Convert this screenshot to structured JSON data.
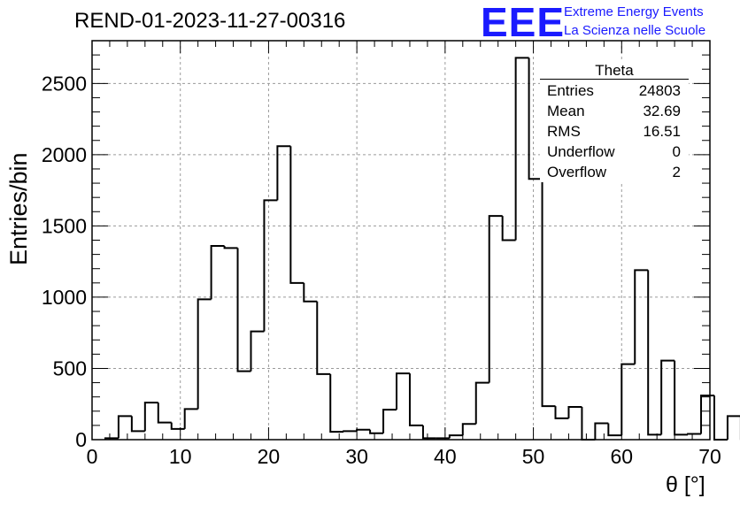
{
  "title": "REND-01-2023-11-27-00316",
  "logo": {
    "mark": "EEE",
    "line1": "Extreme Energy Events",
    "line2": "La Scienza nelle Scuole"
  },
  "stats": {
    "name": "Theta",
    "rows": [
      {
        "label": "Entries",
        "value": "24803"
      },
      {
        "label": "Mean",
        "value": "32.69"
      },
      {
        "label": "RMS",
        "value": "16.51"
      },
      {
        "label": "Underflow",
        "value": "0"
      },
      {
        "label": "Overflow",
        "value": "2"
      }
    ]
  },
  "chart_data": {
    "type": "histogram",
    "xlabel": "θ [°]",
    "ylabel": "Entries/bin",
    "xlim": [
      0,
      70
    ],
    "ylim": [
      0,
      2800
    ],
    "xticks": [
      0,
      10,
      20,
      30,
      40,
      50,
      60,
      70
    ],
    "yticks": [
      0,
      500,
      1000,
      1500,
      2000,
      2500
    ],
    "grid": true,
    "legend": "top-right",
    "bin_width": 1.5,
    "bin_start": 1.5,
    "values": [
      10,
      165,
      60,
      260,
      120,
      75,
      215,
      985,
      1360,
      1345,
      480,
      760,
      1680,
      2060,
      1100,
      970,
      460,
      55,
      60,
      70,
      45,
      210,
      465,
      100,
      10,
      10,
      30,
      110,
      400,
      1570,
      1400,
      2680,
      1830,
      235,
      150,
      230,
      0,
      115,
      30,
      530,
      1190,
      35,
      555,
      35,
      40,
      310,
      0,
      165,
      5
    ],
    "line_color": "#000000",
    "logo_color": "#1a1aff"
  }
}
